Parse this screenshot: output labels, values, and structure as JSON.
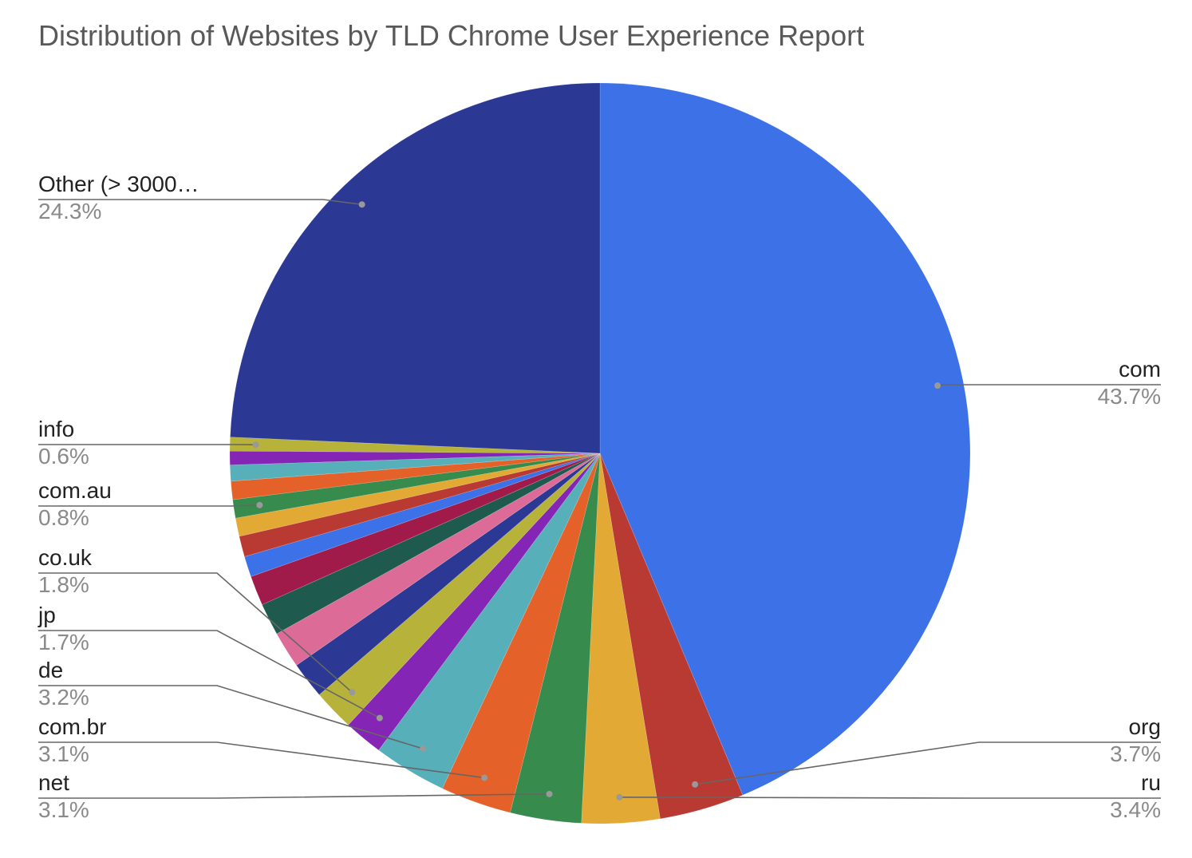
{
  "chart_data": {
    "type": "pie",
    "title": "Distribution of Websites by TLD Chrome User Experience Report",
    "start_angle": "12 o'clock",
    "direction": "clockwise",
    "slices": [
      {
        "label": "com",
        "value": 43.7,
        "display": "43.7%",
        "color": "#3D71E7",
        "labeled": true
      },
      {
        "label": "org",
        "value": 3.7,
        "display": "3.7%",
        "color": "#B93A32",
        "labeled": true
      },
      {
        "label": "ru",
        "value": 3.4,
        "display": "3.4%",
        "color": "#E2A934",
        "labeled": true
      },
      {
        "label": "net",
        "value": 3.1,
        "display": "3.1%",
        "color": "#378B4D",
        "labeled": true
      },
      {
        "label": "com.br",
        "value": 3.1,
        "display": "3.1%",
        "color": "#E4622A",
        "labeled": true
      },
      {
        "label": "de",
        "value": 3.2,
        "display": "3.2%",
        "color": "#57AFBA",
        "labeled": true
      },
      {
        "label": "jp",
        "value": 1.7,
        "display": "1.7%",
        "color": "#8525B5",
        "labeled": true
      },
      {
        "label": "co.uk",
        "value": 1.8,
        "display": "1.8%",
        "color": "#B7B23A",
        "labeled": true
      },
      {
        "value": 1.6,
        "color": "#2B3894",
        "labeled": false
      },
      {
        "value": 1.6,
        "color": "#DD6B98",
        "labeled": false
      },
      {
        "value": 1.4,
        "color": "#1F5A4E",
        "labeled": false
      },
      {
        "value": 1.3,
        "color": "#A11B4A",
        "labeled": false
      },
      {
        "value": 0.9,
        "color": "#3D71E7",
        "labeled": false
      },
      {
        "value": 0.9,
        "color": "#B93A32",
        "labeled": false
      },
      {
        "value": 0.8,
        "color": "#E2A934",
        "labeled": false
      },
      {
        "label": "com.au",
        "value": 0.8,
        "display": "0.8%",
        "color": "#378B4D",
        "labeled": true
      },
      {
        "value": 0.8,
        "color": "#E4622A",
        "labeled": false
      },
      {
        "value": 0.7,
        "color": "#57AFBA",
        "labeled": false
      },
      {
        "value": 0.6,
        "color": "#8525B5",
        "labeled": false
      },
      {
        "label": "info",
        "value": 0.6,
        "display": "0.6%",
        "color": "#B7B23A",
        "labeled": true
      },
      {
        "label": "Other (> 3000…",
        "value": 24.3,
        "display": "24.3%",
        "color": "#2B3894",
        "labeled": true
      }
    ],
    "legend": "none"
  }
}
